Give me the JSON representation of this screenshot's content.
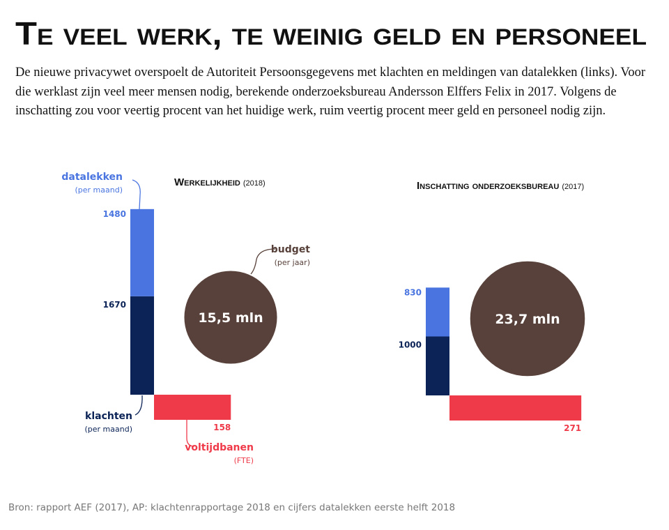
{
  "title": "Te veel werk, te weinig geld en personeel",
  "intro": "De nieuwe privacywet overspoelt de Autoriteit Persoonsgegevens met klachten en meldingen van datalekken (links). Voor die werklast zijn veel meer mensen nodig, berekende onderzoeksbureau Andersson Elffers Felix in 2017. Volgens de inschatting zou voor veertig procent van het huidige werk, ruim veertig procent meer geld en personeel nodig zijn.",
  "source": "Bron: rapport AEF (2017), AP: klachtenrapportage 2018 en cijfers datalekken eerste helft 2018",
  "chart_data": [
    {
      "type": "stacked-bars",
      "title": "Werkelijkheid",
      "subtitle": "(2018)",
      "series": [
        {
          "name": "datalekken",
          "note": "(per maand)",
          "color": "#4a75e0",
          "values": [
            1480
          ]
        },
        {
          "name": "klachten",
          "note": "(per maand)",
          "color": "#0b2356",
          "values": [
            1670
          ]
        },
        {
          "name": "voltijdbanen",
          "note": "(FTE)",
          "color": "#ef3a4a",
          "values": [
            158
          ]
        }
      ],
      "bubble": {
        "name": "budget",
        "note": "(per jaar)",
        "color": "#57413a",
        "value": 15.5,
        "value_label": "15,5 mln"
      }
    },
    {
      "type": "stacked-bars",
      "title": "Inschatting onderzoeksbureau",
      "subtitle": "(2017)",
      "series": [
        {
          "color": "#4a75e0",
          "values": [
            830
          ]
        },
        {
          "color": "#0b2356",
          "values": [
            1000
          ]
        },
        {
          "color": "#ef3a4a",
          "values": [
            271
          ]
        }
      ],
      "bubble": {
        "color": "#57413a",
        "value": 23.7,
        "value_label": "23,7 mln"
      }
    }
  ]
}
